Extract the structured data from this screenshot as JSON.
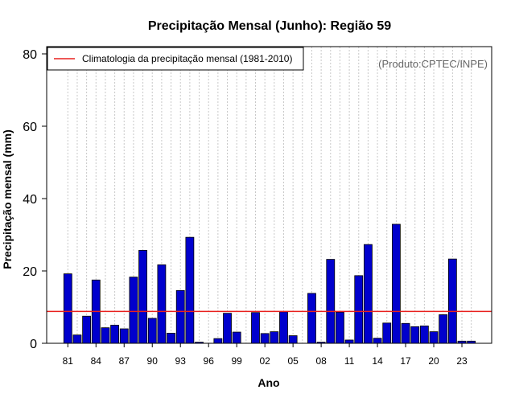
{
  "colors": {
    "bar_fill": "#0000CD",
    "bar_stroke": "#000000",
    "climatology_line": "#E8201E",
    "gridline": "#C8C8C8",
    "credit_text": "#666666"
  },
  "chart_data": {
    "type": "bar",
    "title": "Precipitação Mensal (Junho): Região 59",
    "xlabel": "Ano",
    "ylabel": "Precipitação mensal (mm)",
    "ylim": [
      0,
      82
    ],
    "yticks": [
      0,
      20,
      40,
      60,
      80
    ],
    "grid": "vertical dotted lines at each year",
    "credit": "(Produto:CPTEC/INPE)",
    "legend": {
      "position": "top-left",
      "entries": [
        {
          "label": "Climatologia da precipitação mensal (1981-2010)",
          "kind": "line"
        }
      ]
    },
    "climatology": 8.8,
    "categories": [
      "81",
      "82",
      "83",
      "84",
      "85",
      "86",
      "87",
      "88",
      "89",
      "90",
      "91",
      "92",
      "93",
      "94",
      "95",
      "96",
      "97",
      "98",
      "99",
      "00",
      "01",
      "02",
      "03",
      "04",
      "05",
      "06",
      "07",
      "08",
      "09",
      "10",
      "11",
      "12",
      "13",
      "14",
      "15",
      "16",
      "17",
      "18",
      "19",
      "20",
      "21",
      "22",
      "23",
      "24"
    ],
    "tick_labels": [
      "81",
      "84",
      "87",
      "90",
      "93",
      "96",
      "99",
      "02",
      "05",
      "08",
      "11",
      "14",
      "17",
      "20",
      "23"
    ],
    "series": [
      {
        "name": "Precipitação mensal",
        "values": [
          19.2,
          2.3,
          7.5,
          17.5,
          4.3,
          5.0,
          4.0,
          18.3,
          25.7,
          6.9,
          21.7,
          2.8,
          14.6,
          29.3,
          0.3,
          0.0,
          1.3,
          8.3,
          3.1,
          0.0,
          8.5,
          2.7,
          3.2,
          8.7,
          2.1,
          0.0,
          13.8,
          0.3,
          23.2,
          8.6,
          0.9,
          18.7,
          27.3,
          1.4,
          5.6,
          32.9,
          5.5,
          4.6,
          4.8,
          3.2,
          7.9,
          23.3,
          0.6,
          0.6
        ]
      }
    ]
  }
}
